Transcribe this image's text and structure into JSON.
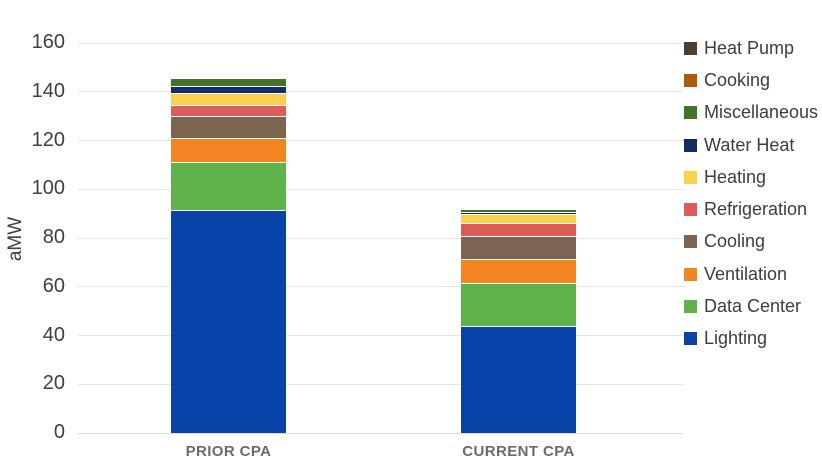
{
  "y_axis": {
    "label": "aMW",
    "tick_labels": [
      "0",
      "20",
      "40",
      "60",
      "80",
      "100",
      "120",
      "140",
      "160"
    ]
  },
  "x_axis": {
    "category_labels": [
      "PRIOR CPA",
      "CURRENT CPA"
    ]
  },
  "legend": {
    "position": "right",
    "order_top_to_bottom": [
      "Heat Pump",
      "Cooking",
      "Miscellaneous",
      "Water Heat",
      "Heating",
      "Refrigeration",
      "Cooling",
      "Ventilation",
      "Data Center",
      "Lighting"
    ]
  },
  "chart_data": {
    "type": "bar",
    "stacked": true,
    "title": "",
    "xlabel": "",
    "ylabel": "aMW",
    "ylim": [
      0,
      160
    ],
    "y_tick_step": 20,
    "grid": true,
    "categories": [
      "PRIOR CPA",
      "CURRENT CPA"
    ],
    "series_bottom_to_top": [
      {
        "name": "Lighting",
        "color": "#0843a9",
        "values": [
          91.5,
          44.0
        ]
      },
      {
        "name": "Data Center",
        "color": "#5fb249",
        "values": [
          19.5,
          17.5
        ]
      },
      {
        "name": "Ventilation",
        "color": "#f28522",
        "values": [
          10.0,
          10.0
        ]
      },
      {
        "name": "Cooling",
        "color": "#7b6450",
        "values": [
          9.0,
          9.5
        ]
      },
      {
        "name": "Refrigeration",
        "color": "#dd5b58",
        "values": [
          4.5,
          5.0
        ]
      },
      {
        "name": "Heating",
        "color": "#fcd04b",
        "values": [
          5.0,
          4.0
        ]
      },
      {
        "name": "Water Heat",
        "color": "#132c61",
        "values": [
          3.0,
          0.5
        ]
      },
      {
        "name": "Miscellaneous",
        "color": "#44722a",
        "values": [
          3.0,
          1.5
        ]
      },
      {
        "name": "Cooking",
        "color": "#ad5a0d",
        "values": [
          0.5,
          0.3
        ]
      },
      {
        "name": "Heat Pump",
        "color": "#4e3e30",
        "values": [
          0.5,
          0.4
        ]
      }
    ],
    "totals": [
      146.5,
      92.7
    ]
  },
  "style_colors": {
    "gridline": "#e7e7e7",
    "baseline": "#dadada",
    "tick_text": "#404040",
    "category_text": "#6b6b6b",
    "legend_text": "#3d3d42",
    "background": "#ffffff"
  }
}
